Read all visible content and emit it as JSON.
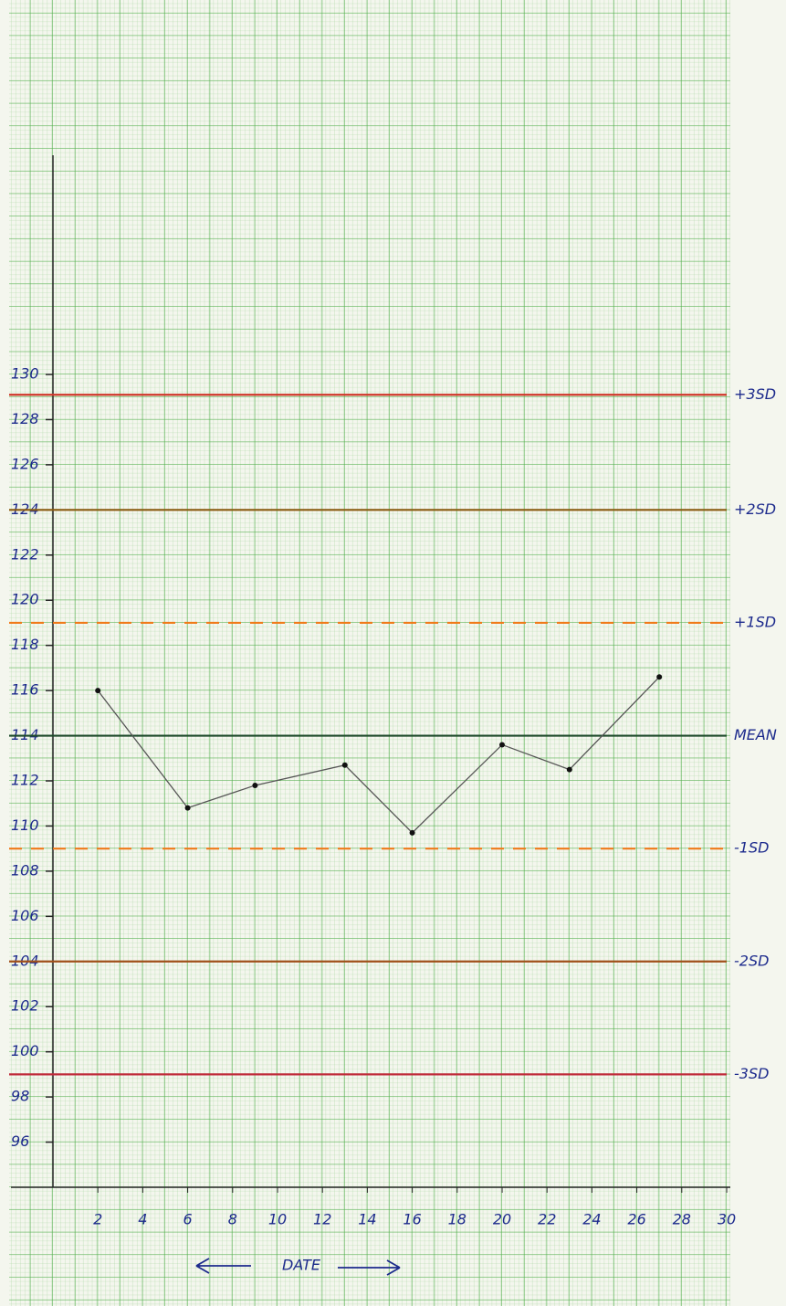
{
  "chart_data": {
    "type": "line",
    "x_label": "DATE",
    "x": [
      2,
      6,
      9,
      13,
      16,
      20,
      23,
      27
    ],
    "series": [
      {
        "color": "#555555",
        "values": [
          116,
          110.8,
          111.8,
          112.7,
          109.7,
          113.6,
          112.5,
          116.6
        ]
      }
    ],
    "xlim": [
      0,
      30
    ],
    "xticks": [
      2,
      4,
      6,
      8,
      10,
      12,
      14,
      16,
      18,
      20,
      22,
      24,
      26,
      28,
      30
    ],
    "ylim": [
      94,
      130
    ],
    "yticks": [
      96,
      98,
      100,
      102,
      104,
      106,
      108,
      110,
      112,
      114,
      116,
      118,
      120,
      122,
      124,
      126,
      128,
      130
    ],
    "control_lines": [
      {
        "name": "+3SD",
        "value": 129.1,
        "color": "#d0362a",
        "dashed": false
      },
      {
        "name": "+2SD",
        "value": 124,
        "color": "#8a5a10",
        "dashed": false
      },
      {
        "name": "+1SD",
        "value": 119,
        "color": "#f07a1a",
        "dashed": true
      },
      {
        "name": "MEAN",
        "value": 114,
        "color": "#1d4a2a",
        "dashed": false
      },
      {
        "name": "-1SD",
        "value": 109,
        "color": "#f07a1a",
        "dashed": true
      },
      {
        "name": "-2SD",
        "value": 104,
        "color": "#a0501a",
        "dashed": false
      },
      {
        "name": "-3SD",
        "value": 99,
        "color": "#c02a3a",
        "dashed": false
      }
    ],
    "grid": true
  }
}
